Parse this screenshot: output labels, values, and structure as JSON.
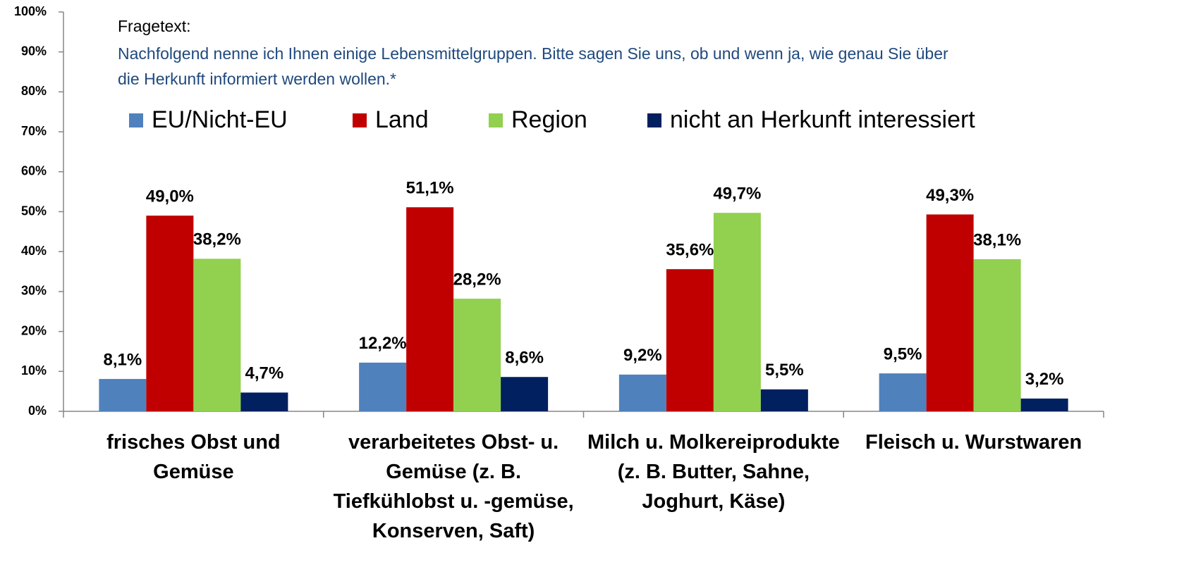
{
  "chart_data": {
    "type": "bar",
    "note_label": "Fragetext:",
    "note": "Nachfolgend nenne ich Ihnen einige Lebensmittelgruppen. Bitte sagen Sie uns, ob und wenn ja, wie genau Sie über die Herkunft informiert werden wollen.*",
    "categories": [
      "frisches Obst und Gemüse",
      "verarbeitetes Obst- u. Gemüse (z. B. Tiefkühlobst u. -gemüse, Konserven, Saft)",
      "Milch u. Molkereiprodukte (z. B. Butter, Sahne, Joghurt, Käse)",
      "Fleisch u. Wurstwaren"
    ],
    "series": [
      {
        "name": "EU/Nicht-EU",
        "color": "#4f81bd",
        "values": [
          8.1,
          12.2,
          9.2,
          9.5
        ],
        "value_labels": [
          "8,1%",
          "12,2%",
          "9,2%",
          "9,5%"
        ]
      },
      {
        "name": "Land",
        "color": "#c00000",
        "values": [
          49.0,
          51.1,
          35.6,
          49.3
        ],
        "value_labels": [
          "49,0%",
          "51,1%",
          "35,6%",
          "49,3%"
        ]
      },
      {
        "name": "Region",
        "color": "#92d050",
        "values": [
          38.2,
          28.2,
          49.7,
          38.1
        ],
        "value_labels": [
          "38,2%",
          "28,2%",
          "49,7%",
          "38,1%"
        ]
      },
      {
        "name": "nicht an Herkunft interessiert",
        "color": "#002060",
        "values": [
          4.7,
          8.6,
          5.5,
          3.2
        ],
        "value_labels": [
          "4,7%",
          "8,6%",
          "5,5%",
          "3,2%"
        ]
      }
    ],
    "ylim": [
      0,
      100
    ],
    "yticks": [
      {
        "value": 0,
        "label": "0%"
      },
      {
        "value": 10,
        "label": "10%"
      },
      {
        "value": 20,
        "label": "20%"
      },
      {
        "value": 30,
        "label": "30%"
      },
      {
        "value": 40,
        "label": "40%"
      },
      {
        "value": 50,
        "label": "50%"
      },
      {
        "value": 60,
        "label": "60%"
      },
      {
        "value": 70,
        "label": "70%"
      },
      {
        "value": 80,
        "label": "80%"
      },
      {
        "value": 90,
        "label": "90%"
      },
      {
        "value": 100,
        "label": "100%"
      }
    ]
  }
}
